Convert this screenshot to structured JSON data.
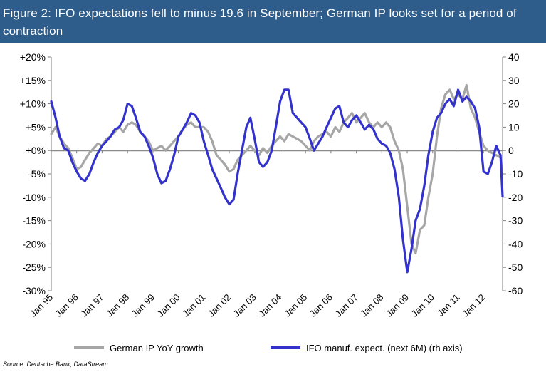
{
  "header": {
    "title": "Figure 2: IFO expectations fell to minus 19.6 in September; German IP looks set for a period of contraction"
  },
  "source": "Source: Deutsche Bank, DataStream",
  "colors": {
    "header_bg": "#2e5d8c",
    "series_ip": "#a6a6a6",
    "series_ifo": "#3333cc",
    "zero_line": "#8c8c8c"
  },
  "chart_data": {
    "type": "line",
    "left_axis": {
      "ticks": [
        "+20%",
        "+15%",
        "+10%",
        "+5%",
        "+0%",
        "-5%",
        "-10%",
        "-15%",
        "-20%",
        "-25%",
        "-30%"
      ],
      "ylim": [
        -30,
        20
      ]
    },
    "right_axis": {
      "ticks": [
        "40",
        "30",
        "20",
        "10",
        "0",
        "-10",
        "-20",
        "-30",
        "-40",
        "-50",
        "-60"
      ],
      "ylim": [
        -60,
        40
      ]
    },
    "x_ticks": [
      "Jan 95",
      "Jan 96",
      "Jan 97",
      "Jan 98",
      "Jan 99",
      "Jan 00",
      "Jan 01",
      "Jan 02",
      "Jan 03",
      "Jan 04",
      "Jan 05",
      "Jan 06",
      "Jan 07",
      "Jan 08",
      "Jan 09",
      "Jan 10",
      "Jan 11",
      "Jan 12"
    ],
    "xlim": [
      1995.0,
      2012.75
    ],
    "grid": false,
    "legend_position": "bottom",
    "series": [
      {
        "name": "German IP YoY growth",
        "axis": "left",
        "points": [
          [
            1995.0,
            3.5
          ],
          [
            1995.17,
            5
          ],
          [
            1995.33,
            3
          ],
          [
            1995.5,
            1.5
          ],
          [
            1995.67,
            0.5
          ],
          [
            1995.83,
            -1.5
          ],
          [
            1996.0,
            -4
          ],
          [
            1996.17,
            -3.5
          ],
          [
            1996.33,
            -2
          ],
          [
            1996.5,
            -0.5
          ],
          [
            1996.67,
            0.5
          ],
          [
            1996.83,
            1.5
          ],
          [
            1997.0,
            1
          ],
          [
            1997.17,
            2.5
          ],
          [
            1997.33,
            3
          ],
          [
            1997.5,
            4
          ],
          [
            1997.67,
            5
          ],
          [
            1997.83,
            4
          ],
          [
            1998.0,
            5.5
          ],
          [
            1998.17,
            6
          ],
          [
            1998.33,
            5.5
          ],
          [
            1998.5,
            4
          ],
          [
            1998.67,
            3
          ],
          [
            1998.83,
            2
          ],
          [
            1999.0,
            0
          ],
          [
            1999.17,
            0.5
          ],
          [
            1999.33,
            1
          ],
          [
            1999.5,
            0
          ],
          [
            1999.67,
            1
          ],
          [
            1999.83,
            2
          ],
          [
            2000.0,
            3
          ],
          [
            2000.17,
            4.5
          ],
          [
            2000.33,
            5.5
          ],
          [
            2000.5,
            6
          ],
          [
            2000.67,
            5
          ],
          [
            2000.83,
            5
          ],
          [
            2001.0,
            5
          ],
          [
            2001.17,
            4
          ],
          [
            2001.33,
            2
          ],
          [
            2001.5,
            -1
          ],
          [
            2001.67,
            -2
          ],
          [
            2001.83,
            -3
          ],
          [
            2002.0,
            -4.5
          ],
          [
            2002.17,
            -4
          ],
          [
            2002.33,
            -2
          ],
          [
            2002.5,
            -1
          ],
          [
            2002.67,
            0
          ],
          [
            2002.83,
            1
          ],
          [
            2003.0,
            0
          ],
          [
            2003.17,
            -1
          ],
          [
            2003.33,
            0.5
          ],
          [
            2003.5,
            -0.5
          ],
          [
            2003.67,
            1
          ],
          [
            2003.83,
            2
          ],
          [
            2004.0,
            3
          ],
          [
            2004.17,
            2
          ],
          [
            2004.33,
            3.5
          ],
          [
            2004.5,
            3
          ],
          [
            2004.67,
            2.5
          ],
          [
            2004.83,
            2
          ],
          [
            2005.0,
            1
          ],
          [
            2005.17,
            0
          ],
          [
            2005.33,
            2
          ],
          [
            2005.5,
            3
          ],
          [
            2005.67,
            3.5
          ],
          [
            2005.83,
            4
          ],
          [
            2006.0,
            3
          ],
          [
            2006.17,
            5
          ],
          [
            2006.33,
            4
          ],
          [
            2006.5,
            6
          ],
          [
            2006.67,
            7
          ],
          [
            2006.83,
            8
          ],
          [
            2007.0,
            6
          ],
          [
            2007.17,
            7
          ],
          [
            2007.33,
            8
          ],
          [
            2007.5,
            6
          ],
          [
            2007.67,
            5
          ],
          [
            2007.83,
            6
          ],
          [
            2008.0,
            5
          ],
          [
            2008.17,
            6
          ],
          [
            2008.33,
            5
          ],
          [
            2008.5,
            2
          ],
          [
            2008.67,
            0
          ],
          [
            2008.83,
            -4
          ],
          [
            2009.0,
            -12
          ],
          [
            2009.17,
            -20
          ],
          [
            2009.33,
            -22
          ],
          [
            2009.5,
            -17
          ],
          [
            2009.67,
            -16
          ],
          [
            2009.83,
            -10
          ],
          [
            2010.0,
            -5
          ],
          [
            2010.17,
            3
          ],
          [
            2010.33,
            9
          ],
          [
            2010.5,
            12
          ],
          [
            2010.67,
            13
          ],
          [
            2010.83,
            11
          ],
          [
            2011.0,
            12
          ],
          [
            2011.17,
            11
          ],
          [
            2011.33,
            14
          ],
          [
            2011.5,
            9
          ],
          [
            2011.67,
            7
          ],
          [
            2011.83,
            4
          ],
          [
            2012.0,
            1
          ],
          [
            2012.17,
            0
          ],
          [
            2012.33,
            -0.5
          ],
          [
            2012.5,
            -1
          ],
          [
            2012.67,
            -1.5
          ]
        ]
      },
      {
        "name": "IFO manuf. expect. (next 6M) (rh axis)",
        "axis": "right",
        "points": [
          [
            1995.0,
            21
          ],
          [
            1995.17,
            14
          ],
          [
            1995.33,
            6
          ],
          [
            1995.5,
            1
          ],
          [
            1995.67,
            0
          ],
          [
            1995.83,
            -5
          ],
          [
            1996.0,
            -9
          ],
          [
            1996.17,
            -12
          ],
          [
            1996.33,
            -13
          ],
          [
            1996.5,
            -10
          ],
          [
            1996.67,
            -5
          ],
          [
            1996.83,
            -1
          ],
          [
            1997.0,
            2
          ],
          [
            1997.17,
            4
          ],
          [
            1997.33,
            6
          ],
          [
            1997.5,
            9
          ],
          [
            1997.67,
            10
          ],
          [
            1997.83,
            13
          ],
          [
            1998.0,
            20
          ],
          [
            1998.17,
            19
          ],
          [
            1998.33,
            14
          ],
          [
            1998.5,
            8
          ],
          [
            1998.67,
            6
          ],
          [
            1998.83,
            2
          ],
          [
            1999.0,
            -3
          ],
          [
            1999.17,
            -10
          ],
          [
            1999.33,
            -14
          ],
          [
            1999.5,
            -13
          ],
          [
            1999.67,
            -8
          ],
          [
            1999.83,
            -2
          ],
          [
            2000.0,
            6
          ],
          [
            2000.17,
            9
          ],
          [
            2000.33,
            12
          ],
          [
            2000.5,
            16
          ],
          [
            2000.67,
            15
          ],
          [
            2000.83,
            12
          ],
          [
            2001.0,
            4
          ],
          [
            2001.17,
            -2
          ],
          [
            2001.33,
            -8
          ],
          [
            2001.5,
            -12
          ],
          [
            2001.67,
            -16
          ],
          [
            2001.83,
            -20
          ],
          [
            2002.0,
            -23
          ],
          [
            2002.17,
            -21
          ],
          [
            2002.33,
            -10
          ],
          [
            2002.5,
            0
          ],
          [
            2002.67,
            10
          ],
          [
            2002.83,
            14
          ],
          [
            2003.0,
            5
          ],
          [
            2003.17,
            -5
          ],
          [
            2003.33,
            -7
          ],
          [
            2003.5,
            -5
          ],
          [
            2003.67,
            0
          ],
          [
            2003.83,
            10
          ],
          [
            2004.0,
            21
          ],
          [
            2004.17,
            26
          ],
          [
            2004.33,
            26
          ],
          [
            2004.5,
            16
          ],
          [
            2004.67,
            14
          ],
          [
            2004.83,
            12
          ],
          [
            2005.0,
            10
          ],
          [
            2005.17,
            5
          ],
          [
            2005.33,
            0
          ],
          [
            2005.5,
            3
          ],
          [
            2005.67,
            6
          ],
          [
            2005.83,
            10
          ],
          [
            2006.0,
            14
          ],
          [
            2006.17,
            18
          ],
          [
            2006.33,
            19
          ],
          [
            2006.5,
            12
          ],
          [
            2006.67,
            10
          ],
          [
            2006.83,
            13
          ],
          [
            2007.0,
            15
          ],
          [
            2007.17,
            12
          ],
          [
            2007.33,
            9
          ],
          [
            2007.5,
            11
          ],
          [
            2007.67,
            9
          ],
          [
            2007.83,
            5
          ],
          [
            2008.0,
            3
          ],
          [
            2008.17,
            2
          ],
          [
            2008.33,
            -1
          ],
          [
            2008.5,
            -8
          ],
          [
            2008.67,
            -20
          ],
          [
            2008.83,
            -38
          ],
          [
            2009.0,
            -52
          ],
          [
            2009.17,
            -42
          ],
          [
            2009.33,
            -30
          ],
          [
            2009.5,
            -25
          ],
          [
            2009.67,
            -15
          ],
          [
            2009.83,
            -2
          ],
          [
            2010.0,
            8
          ],
          [
            2010.17,
            14
          ],
          [
            2010.33,
            16
          ],
          [
            2010.5,
            20
          ],
          [
            2010.67,
            22
          ],
          [
            2010.83,
            19
          ],
          [
            2011.0,
            26
          ],
          [
            2011.17,
            21
          ],
          [
            2011.33,
            23
          ],
          [
            2011.5,
            21
          ],
          [
            2011.67,
            18
          ],
          [
            2011.83,
            10
          ],
          [
            2012.0,
            -9
          ],
          [
            2012.17,
            -10
          ],
          [
            2012.33,
            -5
          ],
          [
            2012.5,
            2
          ],
          [
            2012.67,
            -2
          ],
          [
            2012.75,
            -19.6
          ]
        ]
      }
    ]
  }
}
